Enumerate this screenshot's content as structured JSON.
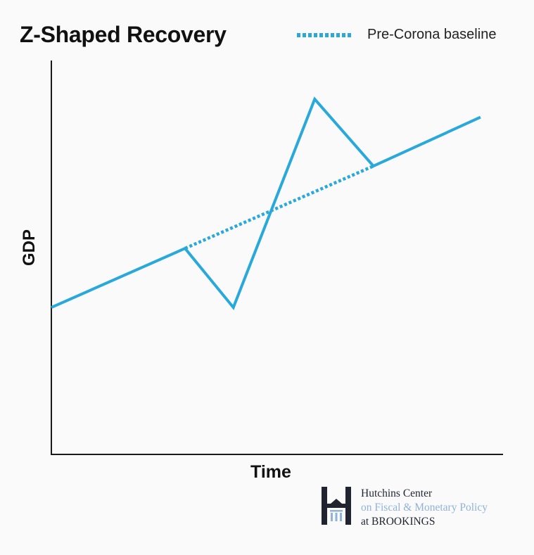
{
  "chart_data": {
    "type": "line",
    "title": "Z-Shaped Recovery",
    "xlabel": "Time",
    "ylabel": "GDP",
    "xlim": [
      0,
      100
    ],
    "ylim": [
      0,
      100
    ],
    "grid": false,
    "legend_position": "top-right",
    "series": [
      {
        "name": "",
        "style": "solid",
        "color": "#29a9d9",
        "x": [
          0,
          29.6,
          40.3,
          58.3,
          71.3,
          95.0
        ],
        "y": [
          37.3,
          52.3,
          37.3,
          90.2,
          73.2,
          85.6
        ]
      },
      {
        "name": "Pre-Corona baseline",
        "style": "dotted",
        "color": "#29a9d9",
        "x": [
          29.6,
          71.3
        ],
        "y": [
          52.3,
          73.2
        ]
      }
    ]
  },
  "legend": {
    "label": "Pre-Corona baseline"
  },
  "brand": {
    "line1": "Hutchins Center",
    "line2": "on Fiscal & Monetary Policy",
    "line3": "at BROOKINGS"
  },
  "colors": {
    "line": "#29a9d9",
    "axis": "#1a1a1a",
    "background": "#fafafa"
  }
}
